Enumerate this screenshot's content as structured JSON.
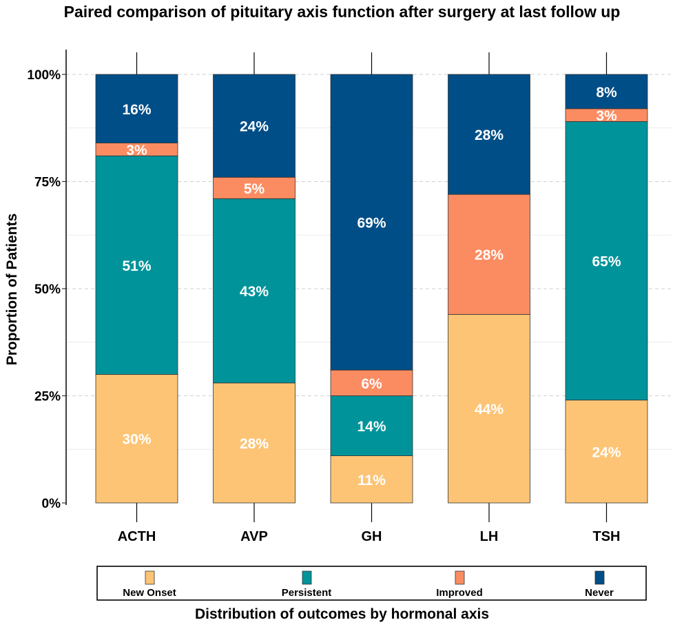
{
  "chart_data": {
    "type": "bar",
    "stacked": true,
    "title": "Paired comparison of pituitary axis function after surgery at last follow up",
    "xlabel": "Distribution of outcomes by hormonal axis",
    "ylabel": "Proportion of Patients",
    "categories": [
      "ACTH",
      "AVP",
      "GH",
      "LH",
      "TSH"
    ],
    "ylim": [
      0,
      100
    ],
    "yticks": [
      0,
      25,
      50,
      75,
      100
    ],
    "ytick_labels": [
      "0%",
      "25%",
      "50%",
      "75%",
      "100%"
    ],
    "grid": true,
    "legend_position": "bottom",
    "series": [
      {
        "name": "New Onset",
        "color": "#FDC475",
        "label_color": "#ffffff",
        "values": [
          30,
          28,
          11,
          44,
          24
        ],
        "labels": [
          "30%",
          "28%",
          "11%",
          "44%",
          "24%"
        ]
      },
      {
        "name": "Persistent",
        "color": "#00939A",
        "label_color": "#ffffff",
        "values": [
          51,
          43,
          14,
          0,
          65
        ],
        "labels": [
          "51%",
          "43%",
          "14%",
          "",
          "65%"
        ]
      },
      {
        "name": "Improved",
        "color": "#FB8C62",
        "label_color": "#ffffff",
        "values": [
          3,
          5,
          6,
          28,
          3
        ],
        "labels": [
          "3%",
          "5%",
          "6%",
          "28%",
          "3%"
        ]
      },
      {
        "name": "Never",
        "color": "#004E87",
        "label_color": "#ffffff",
        "values": [
          16,
          24,
          69,
          28,
          8
        ],
        "labels": [
          "16%",
          "24%",
          "69%",
          "28%",
          "8%"
        ]
      }
    ]
  }
}
